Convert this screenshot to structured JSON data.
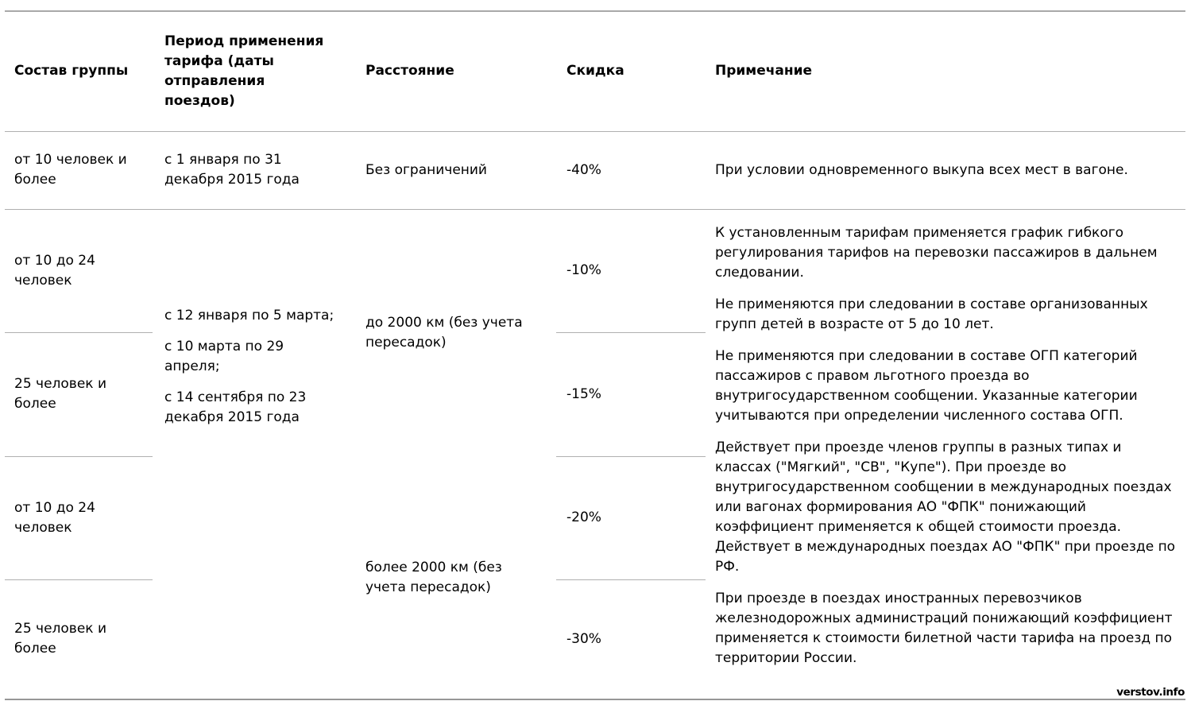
{
  "table": {
    "headers": {
      "group": "Состав группы",
      "period": "Период применения тарифа (даты отправления поездов)",
      "distance": "Расстояние",
      "discount": "Скидка",
      "note": "Примечание"
    },
    "row1": {
      "group": "от 10 человек и более",
      "period": "с 1 января по 31 декабря 2015 года",
      "distance": "Без ограничений",
      "discount": "-40%",
      "note": "При условии одновременного выкупа всех мест в вагоне."
    },
    "section2": {
      "groups": [
        "от 10 до 24 человек",
        "25 человек и более",
        "от 10 до 24 человек",
        "25 человек и более"
      ],
      "period_paragraphs": [
        "с 12 января по 5 марта;",
        "с 10 марта по 29 апреля;",
        "с 14 сентября по 23 декабря 2015 года"
      ],
      "distances": [
        "до 2000 км (без учета пересадок)",
        "более 2000 км (без учета пересадок)"
      ],
      "discounts": [
        "-10%",
        "-15%",
        "-20%",
        "-30%"
      ],
      "note_paragraphs": [
        "К установленным тарифам применяется график гибкого регулирования тарифов на перевозки пассажиров в дальнем следовании.",
        "Не применяются при следовании в составе организованных групп детей в возрасте от 5 до 10 лет.",
        "Не применяются при следовании в составе ОГП категорий пассажиров с правом льготного проезда во внутригосударственном сообщении. Указанные категории учитываются при определении численного состава ОГП.",
        "Действует при проезде членов группы в разных типах и классах (\"Мягкий\", \"СВ\", \"Купе\"). При проезде во внутригосударственном сообщении в международных поездах или вагонах формирования АО \"ФПК\" понижающий коэффициент применяется к общей стоимости проезда. Действует в международных поездах АО \"ФПК\" при проезде по РФ.",
        "При проезде в поездах иностранных перевозчиков железнодорожных администраций понижающий коэффициент применяется к стоимости билетной части тарифа на проезд по территории России."
      ]
    }
  },
  "watermark": "verstov.info"
}
